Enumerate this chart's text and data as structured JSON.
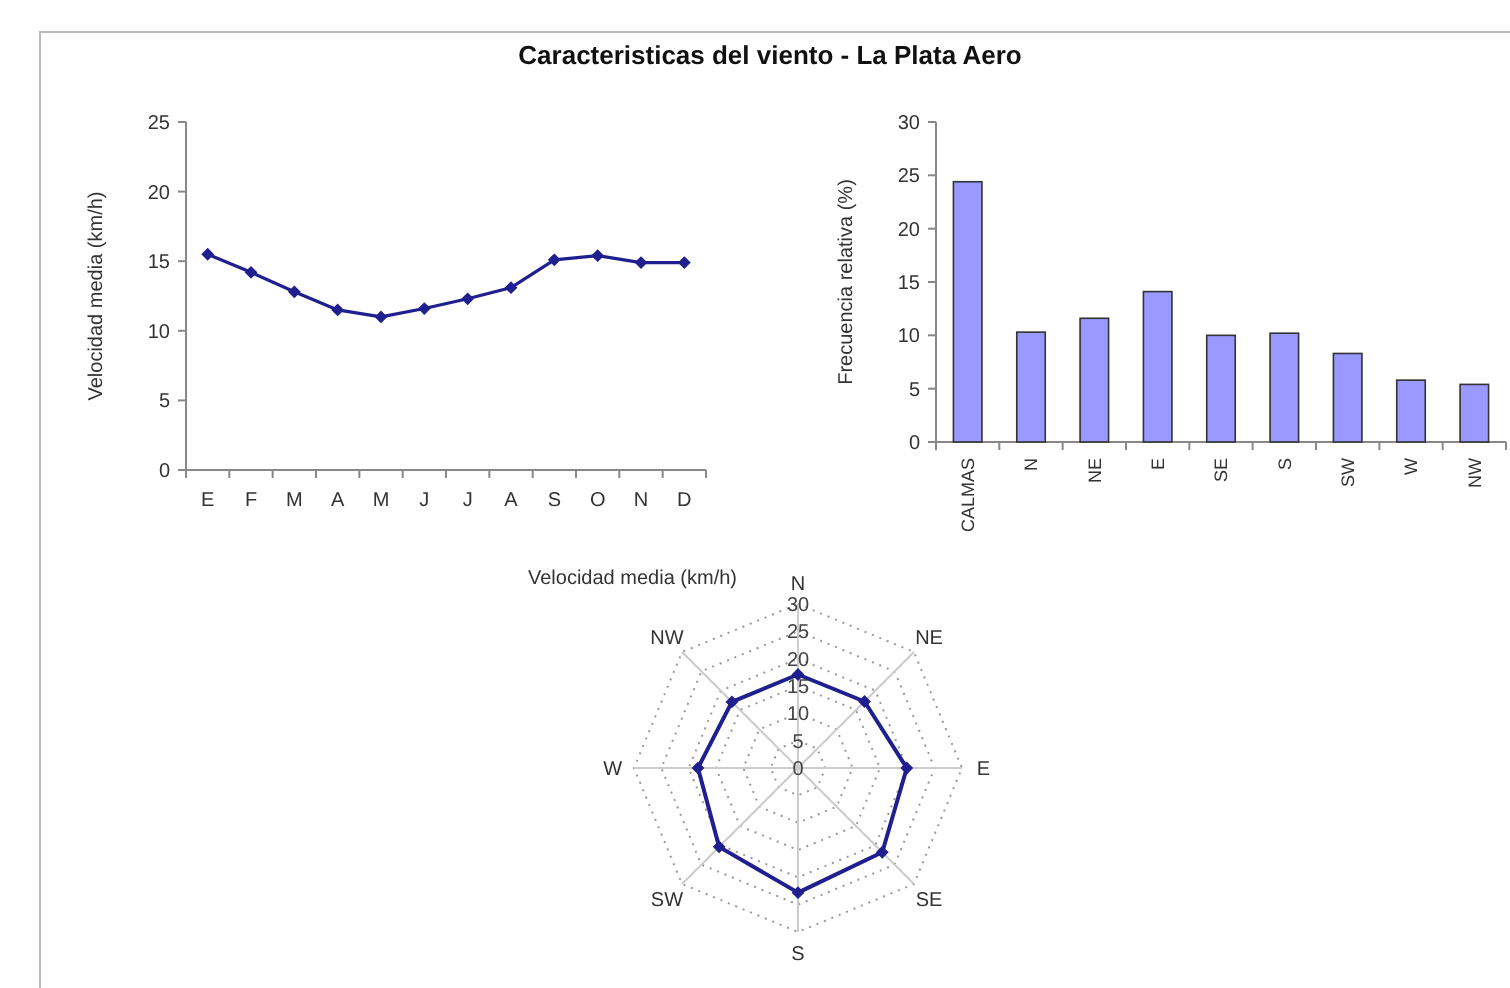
{
  "chart_data": [
    {
      "type": "line",
      "title": "Caracteristicas del viento - La Plata Aero",
      "ylabel": "Velocidad media (km/h)",
      "categories": [
        "E",
        "F",
        "M",
        "A",
        "M",
        "J",
        "J",
        "A",
        "S",
        "O",
        "N",
        "D"
      ],
      "series": [
        {
          "color": "#1f1f8f",
          "values": [
            15.5,
            14.2,
            12.8,
            11.5,
            11.0,
            11.6,
            12.3,
            13.1,
            15.1,
            15.4,
            14.9,
            14.9
          ]
        }
      ],
      "ylim": [
        0,
        25
      ],
      "yticks": [
        0,
        5,
        10,
        15,
        20,
        25
      ],
      "marker": "diamond",
      "grid": false
    },
    {
      "type": "bar",
      "ylabel": "Frecuencia relativa (%)",
      "categories": [
        "CALMAS",
        "N",
        "NE",
        "E",
        "SE",
        "S",
        "SW",
        "W",
        "NW"
      ],
      "series": [
        {
          "color": "#9999ff",
          "values": [
            24.4,
            10.3,
            11.6,
            14.1,
            10.0,
            10.2,
            8.3,
            5.8,
            5.4
          ]
        }
      ],
      "ylim": [
        0,
        30
      ],
      "yticks": [
        0,
        5,
        10,
        15,
        20,
        25,
        30
      ],
      "grid": false
    },
    {
      "type": "radar",
      "title": "Velocidad media (km/h)",
      "categories": [
        "N",
        "NE",
        "E",
        "SE",
        "S",
        "SW",
        "W",
        "NW"
      ],
      "series": [
        {
          "color": "#1f1f8f",
          "values": [
            17.1,
            17.2,
            19.9,
            21.8,
            22.8,
            20.4,
            18.3,
            17.1
          ]
        }
      ],
      "ylim": [
        0,
        30
      ],
      "yticks": [
        0,
        5,
        10,
        15,
        20,
        25,
        30
      ],
      "marker": "diamond",
      "grid": true
    }
  ]
}
